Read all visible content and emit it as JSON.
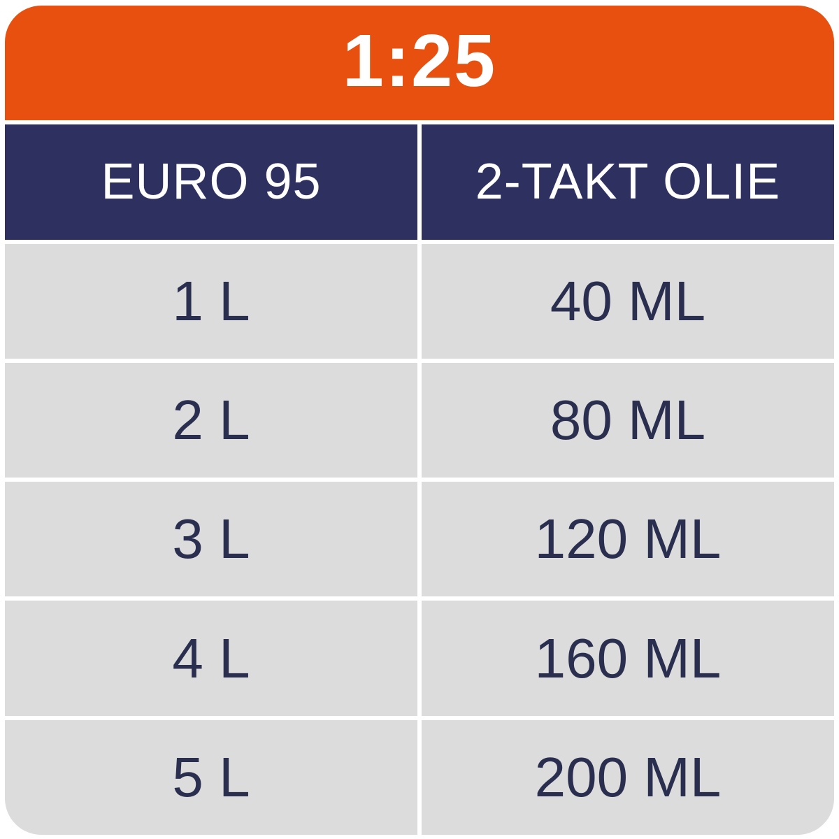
{
  "theme": {
    "banner_bg": "#E8500F",
    "header_bg": "#2E3160",
    "row_bg": "#DCDCDD",
    "cell_text": "#2B2F4F",
    "header_text": "#FFFFFF",
    "banner_text": "#FFFFFF"
  },
  "banner": {
    "ratio": "1:25"
  },
  "table": {
    "columns": [
      {
        "label": "EURO 95"
      },
      {
        "label": "2-TAKT OLIE"
      }
    ],
    "rows": [
      {
        "fuel": "1 L",
        "oil": "40 ML"
      },
      {
        "fuel": "2 L",
        "oil": "80 ML"
      },
      {
        "fuel": "3 L",
        "oil": "120 ML"
      },
      {
        "fuel": "4 L",
        "oil": "160 ML"
      },
      {
        "fuel": "5 L",
        "oil": "200 ML"
      }
    ]
  },
  "chart_data": {
    "type": "table",
    "title": "1:25",
    "categories": [
      "1 L",
      "2 L",
      "3 L",
      "4 L",
      "5 L"
    ],
    "series": [
      {
        "name": "EURO 95 (L)",
        "values": [
          1,
          2,
          3,
          4,
          5
        ]
      },
      {
        "name": "2-TAKT OLIE (ML)",
        "values": [
          40,
          80,
          120,
          160,
          200
        ]
      }
    ]
  }
}
